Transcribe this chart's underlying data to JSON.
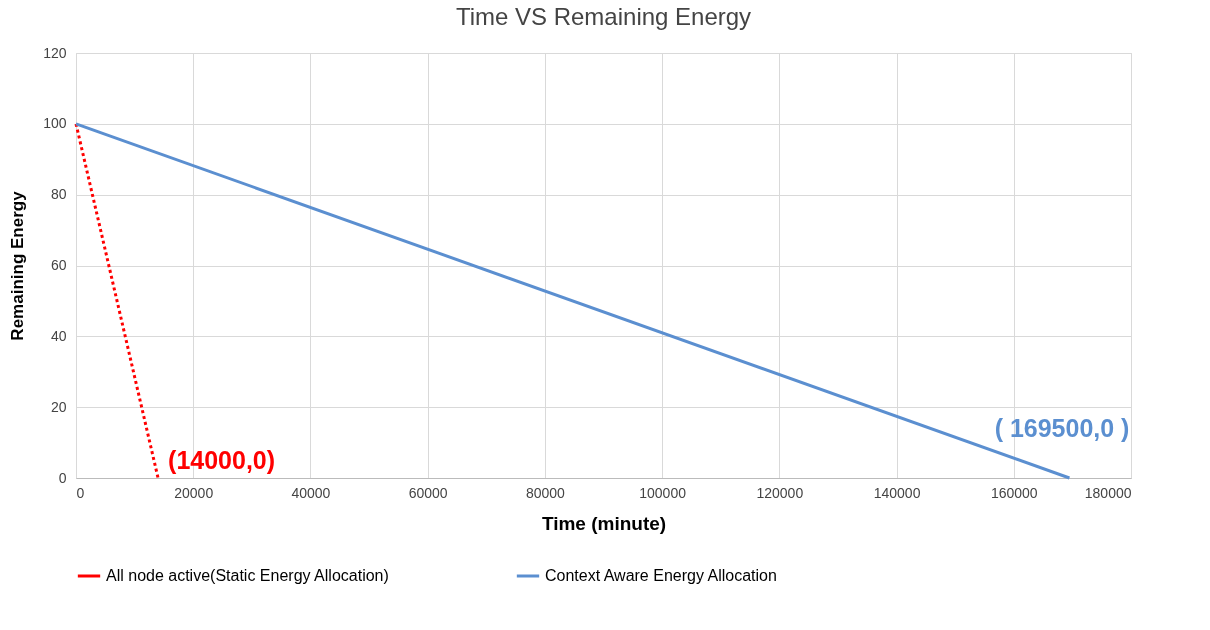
{
  "chart_data": {
    "type": "line",
    "title": "Time VS Remaining Energy",
    "xlabel": "Time (minute)",
    "ylabel": "Remaining Energy",
    "series": [
      {
        "name": "All node active(Static Energy Allocation)",
        "color": "#ff0000",
        "line_style": "dotted",
        "x": [
          0,
          14000
        ],
        "values": [
          100,
          0
        ]
      },
      {
        "name": "Context Aware Energy Allocation",
        "color": "#5b8fd0",
        "line_style": "solid",
        "x": [
          0,
          169500
        ],
        "values": [
          100,
          0
        ]
      }
    ],
    "annotations": [
      {
        "text": "(14000,0)",
        "x": 14000,
        "y": 0
      },
      {
        "text": "( 169500,0 )",
        "x": 169500,
        "y": 0
      }
    ],
    "xlim": [
      0,
      180000
    ],
    "xticks": [
      0,
      20000,
      40000,
      60000,
      80000,
      100000,
      120000,
      140000,
      160000,
      180000
    ],
    "ylim": [
      0,
      120
    ],
    "yticks": [
      0,
      20,
      40,
      60,
      80,
      100,
      120
    ],
    "grid": true,
    "legend": "bottom"
  }
}
